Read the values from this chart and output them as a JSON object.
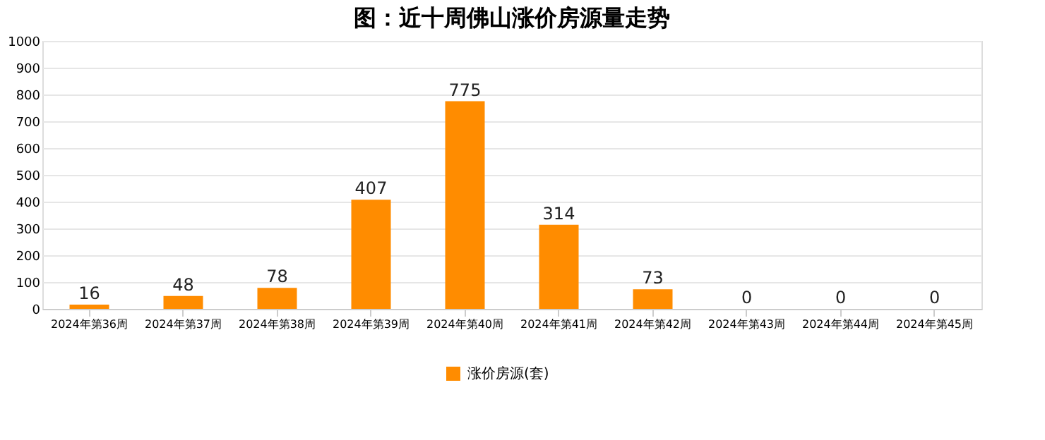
{
  "chart_data": {
    "type": "bar",
    "title": "图：近十周佛山涨价房源量走势",
    "categories": [
      "2024年第36周",
      "2024年第37周",
      "2024年第38周",
      "2024年第39周",
      "2024年第40周",
      "2024年第41周",
      "2024年第42周",
      "2024年第43周",
      "2024年第44周",
      "2024年第45周"
    ],
    "series": [
      {
        "name": "涨价房源(套)",
        "color": "#ff8c00",
        "values": [
          16,
          48,
          78,
          407,
          775,
          314,
          73,
          0,
          0,
          0
        ]
      }
    ],
    "ylim": [
      0,
      1000
    ],
    "yticks": [
      0,
      100,
      200,
      300,
      400,
      500,
      600,
      700,
      800,
      900,
      1000
    ],
    "grid": "y",
    "legend": "bottom",
    "data_labels": true
  }
}
